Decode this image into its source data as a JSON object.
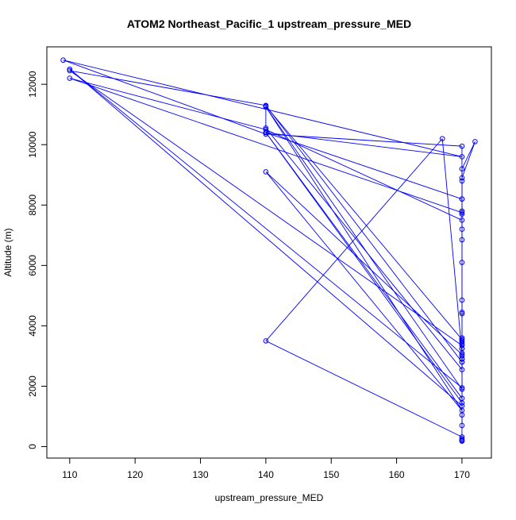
{
  "chart_data": {
    "type": "line",
    "title": "ATOM2 Northeast_Pacific_1 upstream_pressure_MED",
    "xlabel": "upstream_pressure_MED",
    "ylabel": "Altitude (m)",
    "xlim": [
      106.5,
      174.5
    ],
    "ylim": [
      -380,
      13240
    ],
    "xticks": [
      110,
      120,
      130,
      140,
      150,
      160,
      170
    ],
    "yticks": [
      0,
      2000,
      4000,
      6000,
      8000,
      10000,
      12000
    ],
    "grid": false,
    "colors": {
      "series": "#0000ff",
      "axes": "#000000",
      "background": "#ffffff"
    },
    "marker": "open-circle",
    "series": [
      {
        "x": [
          170,
          170,
          170,
          170,
          140,
          167,
          170,
          170,
          170,
          170,
          170,
          170,
          170,
          170,
          170,
          170,
          170,
          170,
          170,
          170,
          170,
          172,
          170,
          170,
          170,
          170,
          170,
          110,
          140,
          170,
          170,
          170,
          140,
          170,
          109,
          140,
          170,
          170,
          110,
          140,
          170,
          170,
          140,
          170,
          140,
          170,
          170,
          140,
          140,
          170,
          170,
          140,
          170,
          170,
          110,
          170,
          170,
          170,
          170,
          170,
          170,
          170,
          170
        ],
        "y": [
          180,
          220,
          260,
          320,
          3500,
          10200,
          3100,
          2900,
          3000,
          3250,
          3400,
          3500,
          3550,
          3600,
          4400,
          4450,
          4850,
          6100,
          6850,
          7200,
          9200,
          10100,
          8900,
          8800,
          8200,
          7800,
          7750,
          12200,
          10500,
          7500,
          7700,
          8200,
          10400,
          9600,
          12800,
          10350,
          9950,
          3350,
          12450,
          11300,
          2800,
          1900,
          11250,
          1200,
          9100,
          3050,
          3550,
          11280,
          10550,
          2550,
          1600,
          10400,
          1450,
          1350,
          12500,
          1950,
          1050,
          700,
          2800,
          3250,
          3450,
          2900,
          200
        ]
      }
    ]
  }
}
